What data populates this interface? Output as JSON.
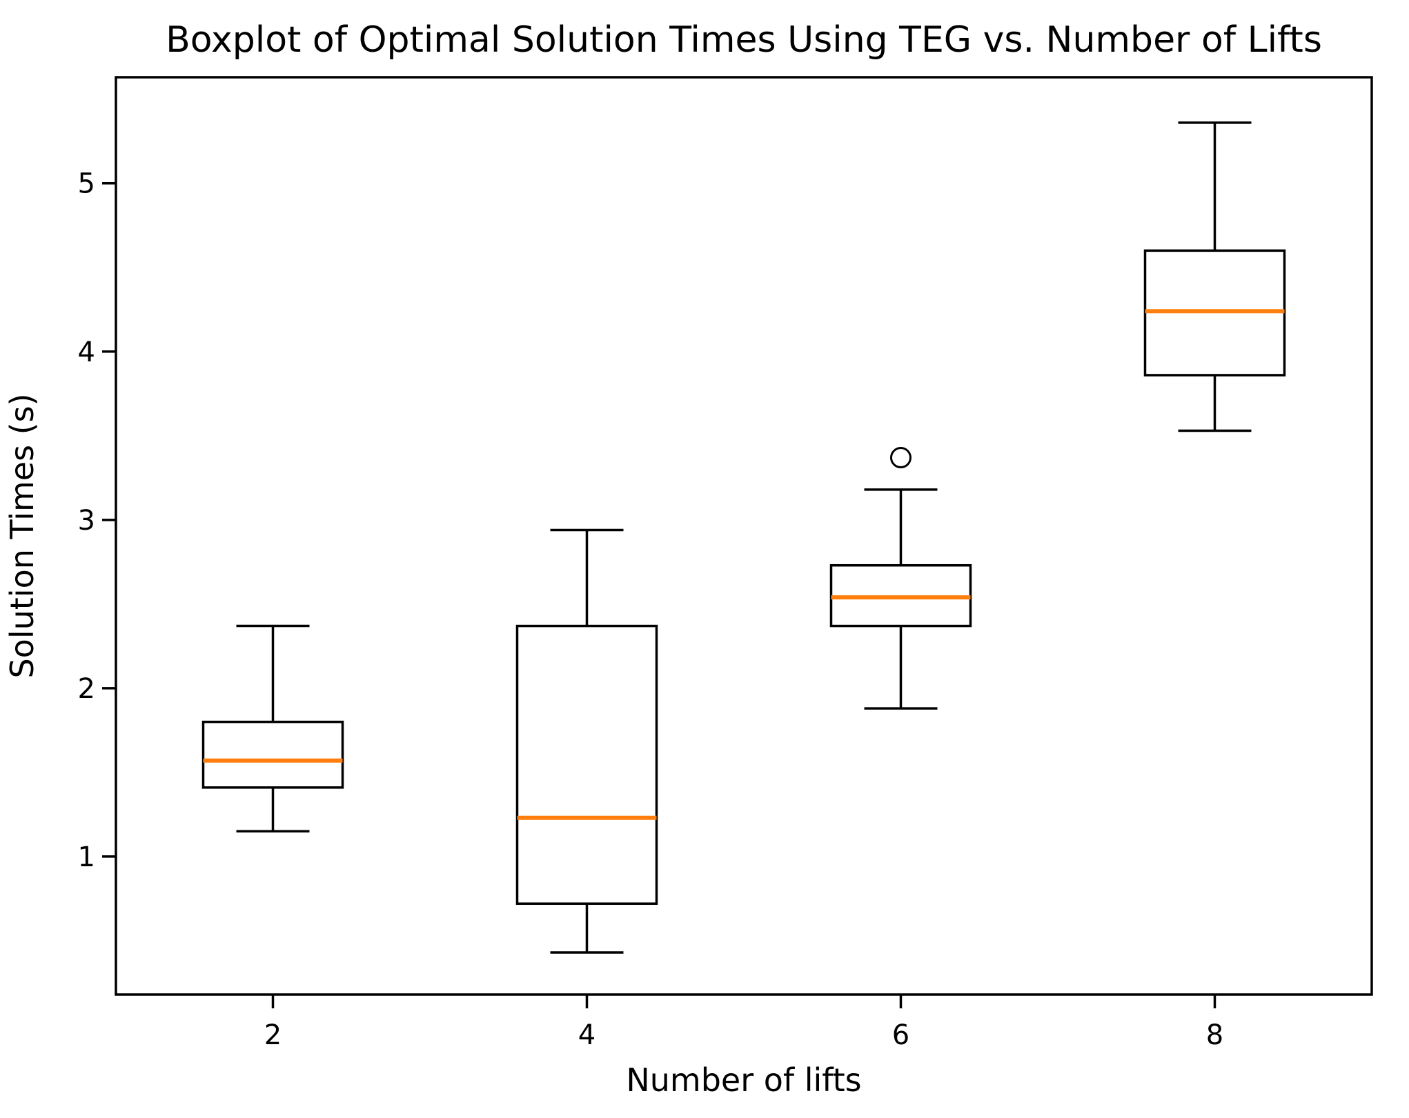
{
  "colors": {
    "median": "#ff7f0e",
    "line": "#000000",
    "text": "#000000",
    "background": "#ffffff"
  },
  "chart_data": {
    "type": "boxplot",
    "title": "Boxplot of Optimal Solution Times Using TEG vs. Number of Lifts",
    "xlabel": "Number of lifts",
    "ylabel": "Solution Times (s)",
    "legend": "none",
    "grid": false,
    "xlim": [
      1,
      9
    ],
    "ylim": [
      0.18,
      5.63
    ],
    "yticks": [
      1,
      2,
      3,
      4,
      5
    ],
    "x_positions": [
      2,
      4,
      6,
      8
    ],
    "xtick_labels": [
      "2",
      "4",
      "6",
      "8"
    ],
    "boxes": [
      {
        "x": 2,
        "whisker_low": 1.15,
        "q1": 1.41,
        "median": 1.57,
        "q3": 1.8,
        "whisker_high": 2.37,
        "outliers": []
      },
      {
        "x": 4,
        "whisker_low": 0.43,
        "q1": 0.72,
        "median": 1.23,
        "q3": 2.37,
        "whisker_high": 2.94,
        "outliers": []
      },
      {
        "x": 6,
        "whisker_low": 1.88,
        "q1": 2.37,
        "median": 2.54,
        "q3": 2.73,
        "whisker_high": 3.18,
        "outliers": [
          3.37
        ]
      },
      {
        "x": 8,
        "whisker_low": 3.53,
        "q1": 3.86,
        "median": 4.24,
        "q3": 4.6,
        "whisker_high": 5.36,
        "outliers": []
      }
    ]
  }
}
